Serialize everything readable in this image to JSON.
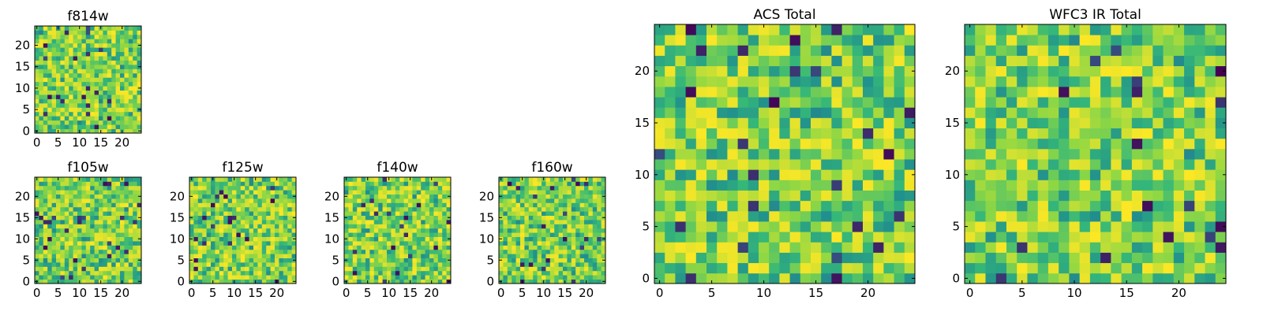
{
  "figure_title": "",
  "colormap": [
    "#440154",
    "#31688e",
    "#21908d",
    "#35b779",
    "#8fd744",
    "#fde725"
  ],
  "chart_data": [
    {
      "type": "heatmap",
      "title": "f814w",
      "grid": [
        25,
        25
      ],
      "xlim": [
        -0.5,
        24.5
      ],
      "ylim": [
        -0.5,
        24.5
      ],
      "xticks": [
        "0",
        "5",
        "10",
        "15",
        "20"
      ],
      "yticks": [
        "0",
        "5",
        "10",
        "15",
        "20"
      ],
      "value_range": [
        0,
        1
      ],
      "seed": 11
    },
    {
      "type": "heatmap",
      "title": "f105w",
      "grid": [
        25,
        25
      ],
      "xlim": [
        -0.5,
        24.5
      ],
      "ylim": [
        -0.5,
        24.5
      ],
      "xticks": [
        "0",
        "5",
        "10",
        "15",
        "20"
      ],
      "yticks": [
        "0",
        "5",
        "10",
        "15",
        "20"
      ],
      "value_range": [
        0,
        1
      ],
      "seed": 23
    },
    {
      "type": "heatmap",
      "title": "f125w",
      "grid": [
        25,
        25
      ],
      "xlim": [
        -0.5,
        24.5
      ],
      "ylim": [
        -0.5,
        24.5
      ],
      "xticks": [
        "0",
        "5",
        "10",
        "15",
        "20"
      ],
      "yticks": [
        "0",
        "5",
        "10",
        "15",
        "20"
      ],
      "value_range": [
        0,
        1
      ],
      "seed": 37
    },
    {
      "type": "heatmap",
      "title": "f140w",
      "grid": [
        25,
        25
      ],
      "xlim": [
        -0.5,
        24.5
      ],
      "ylim": [
        -0.5,
        24.5
      ],
      "xticks": [
        "0",
        "5",
        "10",
        "15",
        "20"
      ],
      "yticks": [
        "0",
        "5",
        "10",
        "15",
        "20"
      ],
      "value_range": [
        0,
        1
      ],
      "seed": 41
    },
    {
      "type": "heatmap",
      "title": "f160w",
      "grid": [
        25,
        25
      ],
      "xlim": [
        -0.5,
        24.5
      ],
      "ylim": [
        -0.5,
        24.5
      ],
      "xticks": [
        "0",
        "5",
        "10",
        "15",
        "20"
      ],
      "yticks": [
        "0",
        "5",
        "10",
        "15",
        "20"
      ],
      "value_range": [
        0,
        1
      ],
      "seed": 53
    },
    {
      "type": "heatmap",
      "title": "ACS Total",
      "grid": [
        25,
        25
      ],
      "xlim": [
        -0.5,
        24.5
      ],
      "ylim": [
        -0.5,
        24.5
      ],
      "xticks": [
        "0",
        "5",
        "10",
        "15",
        "20"
      ],
      "yticks": [
        "0",
        "5",
        "10",
        "15",
        "20"
      ],
      "value_range": [
        0,
        1
      ],
      "seed": 67
    },
    {
      "type": "heatmap",
      "title": "WFC3 IR Total",
      "grid": [
        25,
        25
      ],
      "xlim": [
        -0.5,
        24.5
      ],
      "ylim": [
        -0.5,
        24.5
      ],
      "xticks": [
        "0",
        "5",
        "10",
        "15",
        "20"
      ],
      "yticks": [
        "0",
        "5",
        "10",
        "15",
        "20"
      ],
      "value_range": [
        0,
        1
      ],
      "seed": 79
    }
  ]
}
